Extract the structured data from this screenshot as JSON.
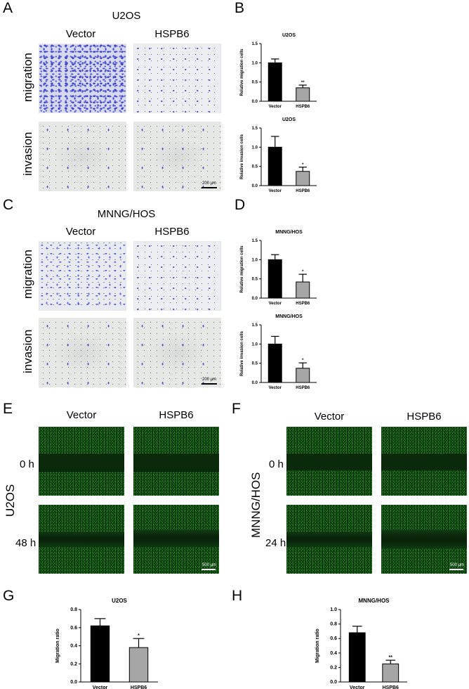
{
  "panels": {
    "A": {
      "letter": "A",
      "cell": "U2OS",
      "col1": "Vector",
      "col2": "HSPB6",
      "row1": "migration",
      "row2": "invasion",
      "scale": "200 μm"
    },
    "B": {
      "letter": "B"
    },
    "C": {
      "letter": "C",
      "cell": "MNNG/HOS",
      "col1": "Vector",
      "col2": "HSPB6",
      "row1": "migration",
      "row2": "invasion",
      "scale": "200 μm"
    },
    "D": {
      "letter": "D"
    },
    "E": {
      "letter": "E",
      "cell": "U2OS",
      "col1": "Vector",
      "col2": "HSPB6",
      "row1": "0 h",
      "row2": "48 h",
      "scale": "500 μm"
    },
    "F": {
      "letter": "F",
      "cell": "MNNG/HOS",
      "col1": "Vector",
      "col2": "HSPB6",
      "row1": "0 h",
      "row2": "24 h",
      "scale": "500 μm"
    },
    "G": {
      "letter": "G"
    },
    "H": {
      "letter": "H"
    }
  },
  "chart_data": [
    {
      "id": "B1",
      "type": "bar",
      "title": "U2OS",
      "ylabel": "Relative migration cells",
      "categories": [
        "Vector",
        "HSPB6"
      ],
      "values": [
        1.0,
        0.35
      ],
      "errors": [
        0.1,
        0.07
      ],
      "sig": [
        "",
        "**"
      ],
      "ylim": [
        0,
        1.5
      ],
      "ticks": [
        "0.0",
        "0.5",
        "1.0",
        "1.5"
      ],
      "colors": [
        "#000000",
        "#a6a6a6"
      ]
    },
    {
      "id": "B2",
      "type": "bar",
      "title": "U2OS",
      "ylabel": "Relative invasion cells",
      "categories": [
        "Vector",
        "HSPB6"
      ],
      "values": [
        1.0,
        0.37
      ],
      "errors": [
        0.28,
        0.11
      ],
      "sig": [
        "",
        "*"
      ],
      "ylim": [
        0,
        1.5
      ],
      "ticks": [
        "0.0",
        "0.5",
        "1.0",
        "1.5"
      ],
      "colors": [
        "#000000",
        "#a6a6a6"
      ]
    },
    {
      "id": "D1",
      "type": "bar",
      "title": "MNNG/HOS",
      "ylabel": "Relative migration cells",
      "categories": [
        "Vector",
        "HSPB6"
      ],
      "values": [
        1.0,
        0.42
      ],
      "errors": [
        0.13,
        0.2
      ],
      "sig": [
        "",
        "*"
      ],
      "ylim": [
        0,
        1.5
      ],
      "ticks": [
        "0.0",
        "0.5",
        "1.0",
        "1.5"
      ],
      "colors": [
        "#000000",
        "#a6a6a6"
      ]
    },
    {
      "id": "D2",
      "type": "bar",
      "title": "MNNG/HOS",
      "ylabel": "Relative invasion cells",
      "categories": [
        "Vector",
        "HSPB6"
      ],
      "values": [
        1.0,
        0.37
      ],
      "errors": [
        0.2,
        0.14
      ],
      "sig": [
        "",
        "*"
      ],
      "ylim": [
        0,
        1.5
      ],
      "ticks": [
        "0.0",
        "0.5",
        "1.0",
        "1.5"
      ],
      "colors": [
        "#000000",
        "#a6a6a6"
      ]
    },
    {
      "id": "G",
      "type": "bar",
      "title": "U2OS",
      "ylabel": "Migration ratio",
      "categories": [
        "Vector",
        "HSPB6"
      ],
      "values": [
        0.62,
        0.38
      ],
      "errors": [
        0.08,
        0.1
      ],
      "sig": [
        "",
        "*"
      ],
      "ylim": [
        0,
        0.8
      ],
      "ticks": [
        "0.0",
        "0.2",
        "0.4",
        "0.6",
        "0.8"
      ],
      "colors": [
        "#000000",
        "#a6a6a6"
      ]
    },
    {
      "id": "H",
      "type": "bar",
      "title": "MNNG/HOS",
      "ylabel": "Migration ratio",
      "categories": [
        "Vector",
        "HSPB6"
      ],
      "values": [
        0.68,
        0.25
      ],
      "errors": [
        0.09,
        0.05
      ],
      "sig": [
        "",
        "**"
      ],
      "ylim": [
        0,
        1.0
      ],
      "ticks": [
        "0.0",
        "0.2",
        "0.4",
        "0.6",
        "0.8",
        "1.0"
      ],
      "colors": [
        "#000000",
        "#a6a6a6"
      ]
    }
  ]
}
